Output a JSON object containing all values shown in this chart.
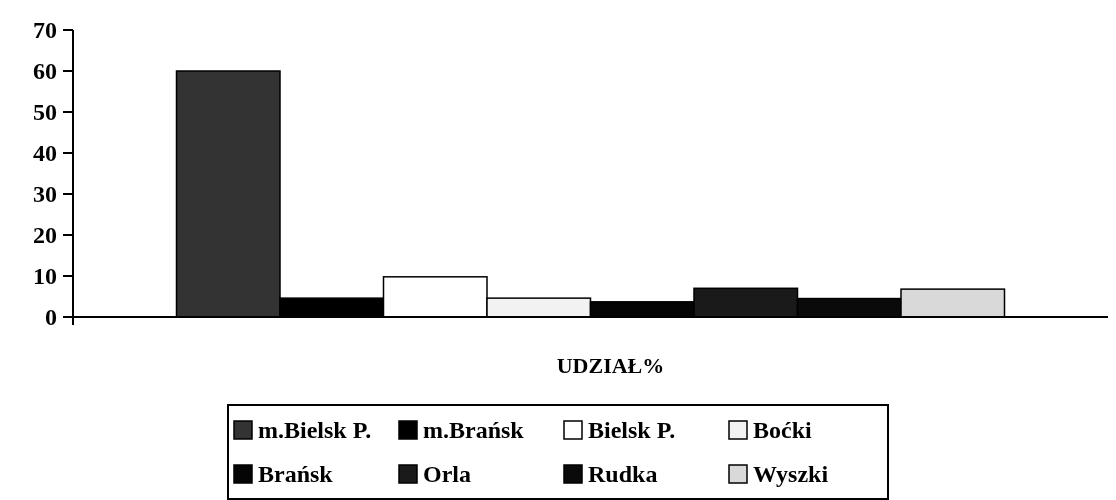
{
  "chart_data": {
    "type": "bar",
    "xlabel": "UDZIAŁ%",
    "categories": [
      null
    ],
    "series": [
      {
        "name": "m.Bielsk P.",
        "color": "#333333",
        "values": [
          60
        ]
      },
      {
        "name": "m.Brańsk",
        "color": "#000000",
        "values": [
          4.6
        ]
      },
      {
        "name": "Bielsk P.",
        "color": "#ffffff",
        "values": [
          9.8
        ]
      },
      {
        "name": "Boćki",
        "color": "#f2f2f2",
        "values": [
          4.6
        ]
      },
      {
        "name": "Brańsk",
        "color": "#050505",
        "values": [
          3.7
        ]
      },
      {
        "name": "Orla",
        "color": "#1a1a1a",
        "values": [
          7
        ]
      },
      {
        "name": "Rudka",
        "color": "#0a0a0a",
        "values": [
          4.5
        ]
      },
      {
        "name": "Wyszki",
        "color": "#d9d9d9",
        "values": [
          6.8
        ]
      }
    ],
    "ylim": [
      0,
      70
    ],
    "yticks": [
      0,
      10,
      20,
      30,
      40,
      50,
      60,
      70
    ],
    "legend": "bottom"
  }
}
